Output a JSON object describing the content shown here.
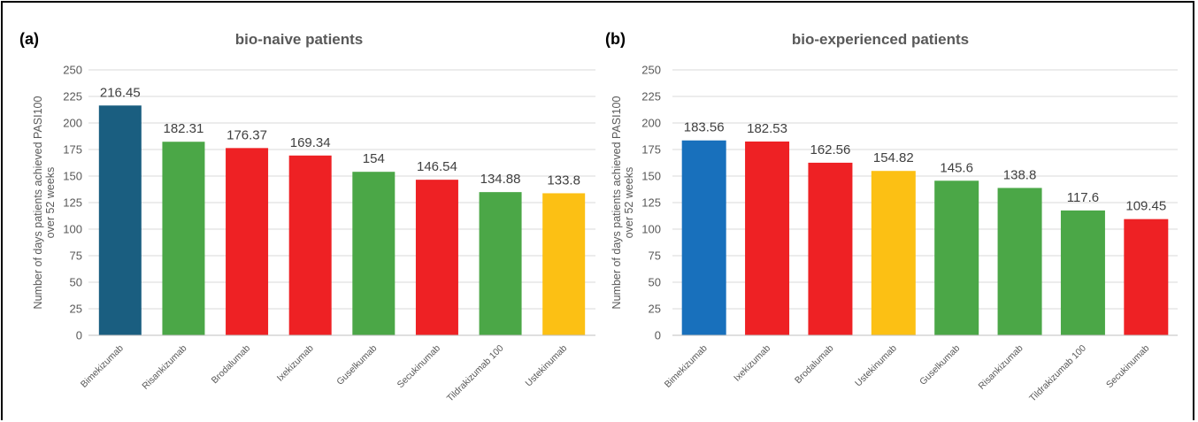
{
  "chart_data": [
    {
      "panel_label": "(a)",
      "type": "bar",
      "title": "bio-naive patients",
      "xlabel": "",
      "ylabel": "Number of days patients achieved PASI100 over 52 weeks",
      "ylabel_lines": [
        "Number of days patients achieved PASI100",
        "over 52 weeks"
      ],
      "ylim": [
        0,
        250
      ],
      "yticks": [
        0,
        25,
        50,
        75,
        100,
        125,
        150,
        175,
        200,
        225,
        250
      ],
      "grid": true,
      "categories": [
        "Bimekizumab",
        "Risankizumab",
        "Brodalumab",
        "Ixekizumab",
        "Guselkumab",
        "Secukinumab",
        "Tildrakizumab 100",
        "Ustekinumab"
      ],
      "values": [
        216.45,
        182.31,
        176.37,
        169.34,
        154,
        146.54,
        134.88,
        133.8
      ],
      "value_labels": [
        "216.45",
        "182.31",
        "176.37",
        "169.34",
        "154",
        "146.54",
        "134.88",
        "133.8"
      ],
      "bar_colors": [
        "#1a5e80",
        "#4ba747",
        "#ee2124",
        "#ee2124",
        "#4ba747",
        "#ee2124",
        "#4ba747",
        "#fcc014"
      ]
    },
    {
      "panel_label": "(b)",
      "type": "bar",
      "title": "bio-experienced patients",
      "xlabel": "",
      "ylabel": "Number of days patients achieved PASI100 over 52 weeks",
      "ylabel_lines": [
        "Number of days patients achieved PASI100",
        "over 52 weeks"
      ],
      "ylim": [
        0,
        250
      ],
      "yticks": [
        0,
        25,
        50,
        75,
        100,
        125,
        150,
        175,
        200,
        225,
        250
      ],
      "grid": true,
      "categories": [
        "Bimekizumab",
        "Ixekizumab",
        "Brodalumab",
        "Ustekinumab",
        "Guselkumab",
        "Risankizumab",
        "Tildrakizumab 100",
        "Secukinumab"
      ],
      "values": [
        183.56,
        182.53,
        162.56,
        154.82,
        145.6,
        138.8,
        117.6,
        109.45
      ],
      "value_labels": [
        "183.56",
        "182.53",
        "162.56",
        "154.82",
        "145.6",
        "138.8",
        "117.6",
        "109.45"
      ],
      "bar_colors": [
        "#1870bc",
        "#ee2124",
        "#ee2124",
        "#fcc014",
        "#4ba747",
        "#4ba747",
        "#4ba747",
        "#ee2124"
      ]
    }
  ],
  "colors": {
    "bimekizumab_naive": "#1a5e80",
    "bimekizumab_experienced": "#1870bc",
    "il23": "#4ba747",
    "il17": "#ee2124",
    "il12_23": "#fcc014",
    "gridline": "#d9d9d9",
    "tick_text": "#595959"
  }
}
